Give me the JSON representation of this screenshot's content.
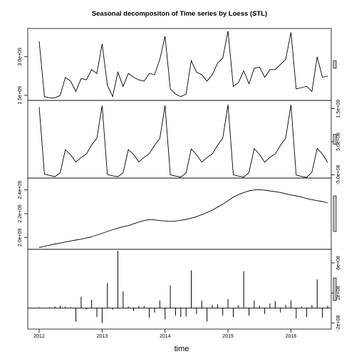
{
  "chart_data": {
    "type": "line",
    "title": "Seasonal decompositon of Time series by Loess (STL)",
    "xlabel": "time",
    "x_ticks": [
      "2012",
      "2013",
      "2014",
      "2015",
      "2016"
    ],
    "x_start": 2012.0,
    "x_step": 0.0833333,
    "panels": [
      {
        "name": "data",
        "style": "line",
        "ylim": [
          1300000000.0,
          4100000000.0
        ],
        "y_ticks": [
          {
            "value": 1500000000.0,
            "label": "1.5e+09"
          },
          {
            "value": 3000000000.0,
            "label": "3.0e+09"
          }
        ],
        "y_tick_side": "left",
        "values": [
          3600000000.0,
          1450000000.0,
          1400000000.0,
          1400000000.0,
          1500000000.0,
          2200000000.0,
          2050000000.0,
          1650000000.0,
          2150000000.0,
          2100000000.0,
          2500000000.0,
          2350000000.0,
          3500000000.0,
          1900000000.0,
          1450000000.0,
          2400000000.0,
          1850000000.0,
          2350000000.0,
          2200000000.0,
          2100000000.0,
          2050000000.0,
          2350000000.0,
          2300000000.0,
          2900000000.0,
          3800000000.0,
          1750000000.0,
          1550000000.0,
          1450000000.0,
          1550000000.0,
          2850000000.0,
          2400000000.0,
          2300000000.0,
          2050000000.0,
          2300000000.0,
          2750000000.0,
          2950000000.0,
          4000000000.0,
          1850000000.0,
          2000000000.0,
          2450000000.0,
          1950000000.0,
          2550000000.0,
          2600000000.0,
          2200000000.0,
          2500000000.0,
          2500000000.0,
          2700000000.0,
          2900000000.0,
          3950000000.0,
          1750000000.0,
          1800000000.0,
          1850000000.0,
          1650000000.0,
          3000000000.0,
          2200000000.0,
          2250000000.0
        ]
      },
      {
        "name": "seasonal",
        "style": "line",
        "ylim": [
          -600000000.0,
          1750000000.0
        ],
        "y_ticks": [
          {
            "value": -500000000.0,
            "label": "-5.0e+08"
          },
          {
            "value": 500000000.0,
            "label": "5.0e+08"
          },
          {
            "value": 1500000000.0,
            "label": "1.5e+09"
          }
        ],
        "y_tick_side": "right",
        "values": [
          1550000000.0,
          -480000000.0,
          -520000000.0,
          -560000000.0,
          -440000000.0,
          260000000.0,
          100000000.0,
          -110000000.0,
          20000000.0,
          130000000.0,
          400000000.0,
          610000000.0,
          1590000000.0,
          -490000000.0,
          -530000000.0,
          -560000000.0,
          -440000000.0,
          260000000.0,
          120000000.0,
          -110000000.0,
          30000000.0,
          140000000.0,
          390000000.0,
          600000000.0,
          1600000000.0,
          -500000000.0,
          -540000000.0,
          -570000000.0,
          -450000000.0,
          280000000.0,
          110000000.0,
          -120000000.0,
          20000000.0,
          130000000.0,
          390000000.0,
          610000000.0,
          1620000000.0,
          -500000000.0,
          -540000000.0,
          -570000000.0,
          -430000000.0,
          290000000.0,
          120000000.0,
          -120000000.0,
          30000000.0,
          130000000.0,
          390000000.0,
          620000000.0,
          1620000000.0,
          -510000000.0,
          -550000000.0,
          -580000000.0,
          -420000000.0,
          300000000.0,
          130000000.0,
          -120000000.0
        ]
      },
      {
        "name": "trend",
        "style": "line",
        "ylim": [
          1900000000.0,
          2500000000.0
        ],
        "y_ticks": [
          {
            "value": 2000000000.0,
            "label": "2.0e+09"
          },
          {
            "value": 2200000000.0,
            "label": "2.2e+09"
          },
          {
            "value": 2400000000.0,
            "label": "2.4e+09"
          }
        ],
        "y_tick_side": "left",
        "values": [
          1915000000.0,
          1925000000.0,
          1935000000.0,
          1945000000.0,
          1953000000.0,
          1962000000.0,
          1970000000.0,
          1978000000.0,
          1986000000.0,
          1995000000.0,
          2005000000.0,
          2020000000.0,
          2035000000.0,
          2050000000.0,
          2065000000.0,
          2078000000.0,
          2090000000.0,
          2100000000.0,
          2115000000.0,
          2130000000.0,
          2142000000.0,
          2150000000.0,
          2148000000.0,
          2142000000.0,
          2138000000.0,
          2135000000.0,
          2138000000.0,
          2144000000.0,
          2152000000.0,
          2162000000.0,
          2175000000.0,
          2192000000.0,
          2210000000.0,
          2230000000.0,
          2255000000.0,
          2280000000.0,
          2310000000.0,
          2340000000.0,
          2360000000.0,
          2378000000.0,
          2392000000.0,
          2400000000.0,
          2402000000.0,
          2398000000.0,
          2392000000.0,
          2386000000.0,
          2378000000.0,
          2368000000.0,
          2358000000.0,
          2350000000.0,
          2340000000.0,
          2328000000.0,
          2318000000.0,
          2310000000.0,
          2302000000.0,
          2290000000.0
        ]
      },
      {
        "name": "remainder",
        "style": "bars",
        "ylim": [
          -280000000.0,
          780000000.0
        ],
        "y_ticks": [
          {
            "value": -200000000.0,
            "label": "-2e+08"
          },
          {
            "value": 200000000.0,
            "label": "2e+08"
          },
          {
            "value": 600000000.0,
            "label": "6e+08"
          }
        ],
        "y_tick_side": "right",
        "values": [
          10000000.0,
          0,
          10000000.0,
          20000000.0,
          30000000.0,
          20000000.0,
          10000000.0,
          -180000000.0,
          150000000.0,
          -20000000.0,
          110000000.0,
          -120000000.0,
          -200000000.0,
          330000000.0,
          -20000000.0,
          760000000.0,
          220000000.0,
          20000000.0,
          -40000000.0,
          30000000.0,
          30000000.0,
          -130000000.0,
          -60000000.0,
          100000000.0,
          -150000000.0,
          300000000.0,
          -100000000.0,
          -120000000.0,
          -110000000.0,
          500000000.0,
          -80000000.0,
          100000000.0,
          -180000000.0,
          40000000.0,
          50000000.0,
          -100000000.0,
          120000000.0,
          -120000000.0,
          40000000.0,
          490000000.0,
          -100000000.0,
          100000000.0,
          30000000.0,
          -80000000.0,
          60000000.0,
          90000000.0,
          -60000000.0,
          40000000.0,
          100000000.0,
          -140000000.0,
          20000000.0,
          -120000000.0,
          40000000.0,
          380000000.0,
          -130000000.0,
          30000000.0
        ]
      }
    ]
  }
}
